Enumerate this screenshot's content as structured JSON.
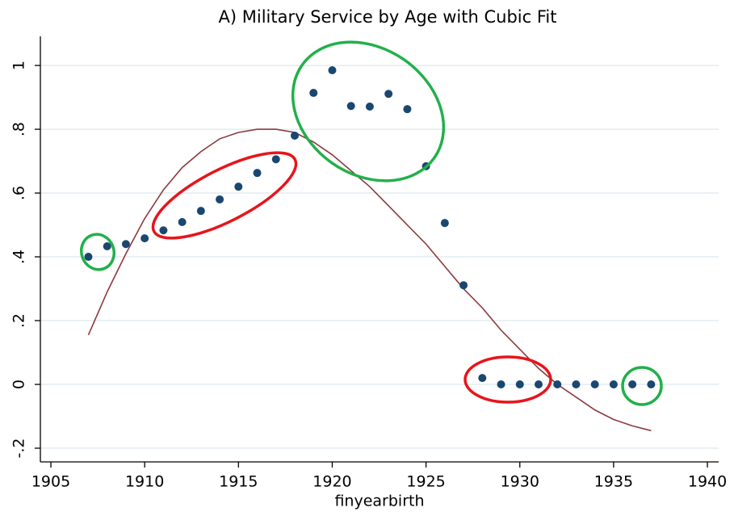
{
  "chart_data": {
    "type": "scatter",
    "title": "A)   Military Service by Age with Cubic Fit",
    "x_label": "finyearbirth",
    "x": [
      1907,
      1908,
      1909,
      1910,
      1911,
      1912,
      1913,
      1914,
      1915,
      1916,
      1917,
      1918,
      1919,
      1920,
      1921,
      1922,
      1923,
      1924,
      1925,
      1926,
      1927,
      1928,
      1929,
      1930,
      1931,
      1932,
      1933,
      1934,
      1935,
      1936,
      1937
    ],
    "series": [
      {
        "mode": "markers",
        "color": "#1a476f",
        "values": [
          0.4,
          0.433,
          0.44,
          0.458,
          0.483,
          0.509,
          0.544,
          0.58,
          0.62,
          0.663,
          0.706,
          0.78,
          0.914,
          0.985,
          0.873,
          0.871,
          0.911,
          0.863,
          0.684,
          0.506,
          0.311,
          0.02,
          0,
          0,
          0,
          0,
          0,
          0,
          0,
          0,
          0
        ]
      },
      {
        "mode": "line",
        "color": "#8b3a3f",
        "values": [
          0.155,
          0.29,
          0.41,
          0.52,
          0.61,
          0.68,
          0.73,
          0.77,
          0.79,
          0.8,
          0.8,
          0.79,
          0.76,
          0.72,
          0.67,
          0.62,
          0.56,
          0.5,
          0.44,
          0.37,
          0.3,
          0.24,
          0.17,
          0.11,
          0.05,
          0,
          -0.04,
          -0.08,
          -0.11,
          -0.13,
          -0.145
        ]
      }
    ],
    "xlim": [
      1904.44,
      1940.6
    ],
    "ylim": [
      -0.243,
      1.104
    ],
    "xticks": [
      1905,
      1910,
      1915,
      1920,
      1925,
      1930,
      1935,
      1940
    ],
    "yticks": [
      {
        "value": -0.2,
        "label": "-.2"
      },
      0,
      {
        "value": 0.2,
        "label": ".2"
      },
      {
        "value": 0.4,
        "label": ".4"
      },
      {
        "value": 0.6,
        "label": ".6"
      },
      {
        "value": 0.8,
        "label": ".8"
      },
      1
    ],
    "grid": true
  }
}
